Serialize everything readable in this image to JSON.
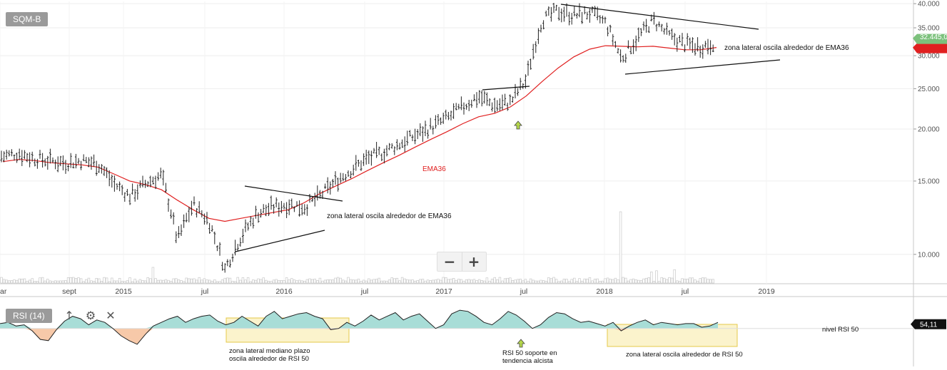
{
  "symbol": "SQM-B",
  "rsi_label": "RSI (14)",
  "icons": {
    "up": "arrow-up-icon",
    "settings": "gear-icon",
    "close": "close-icon",
    "zoom_out": "minus-icon",
    "zoom_in": "plus-icon"
  },
  "zoom": {
    "out_label": "−",
    "in_label": "+"
  },
  "colors": {
    "ema": "#e02020",
    "rsi_above": "#a8ddd7",
    "rsi_below": "#f7c9a9",
    "highlight": "#f6e58d",
    "price_badge": "#7cc17c"
  },
  "chart_data": [
    {
      "type": "line",
      "scale": "log",
      "price_axis": {
        "ticks": [
          10,
          15,
          20,
          25,
          30,
          35,
          40
        ],
        "tick_labels": [
          "10.000",
          "15.000",
          "20.000",
          "25.000",
          "30.000",
          "35.000",
          "40.000"
        ],
        "range": [
          8.5,
          40.5
        ]
      },
      "time_axis": {
        "labels": [
          "ar",
          "sept",
          "2015",
          "jul",
          "2016",
          "jul",
          "2017",
          "jul",
          "2018",
          "jul",
          "2019"
        ]
      },
      "series": [
        {
          "name": "EMA36",
          "values": [
            16.7,
            16.9,
            16.8,
            16.6,
            16.5,
            16.4,
            16.2,
            15.6,
            15.0,
            14.7,
            14.3,
            13.5,
            12.8,
            12.2,
            12.0,
            12.2,
            12.4,
            12.6,
            12.8,
            13.3,
            14.0,
            14.6,
            15.2,
            15.9,
            16.6,
            17.3,
            18.1,
            18.9,
            19.7,
            20.6,
            21.4,
            21.8,
            22.6,
            24.0,
            26.0,
            28.0,
            29.8,
            31.1,
            31.7,
            31.6,
            31.5,
            31.6,
            31.3,
            31.0,
            31.0,
            31.4
          ]
        },
        {
          "name": "",
          "values": [
            17.2,
            17.5,
            17.0,
            16.8,
            16.6,
            16.8,
            16.5,
            14.8,
            13.8,
            14.8,
            15.5,
            10.8,
            13.2,
            12.0,
            9.2,
            11.0,
            12.5,
            13.0,
            13.2,
            13.0,
            13.8,
            15.0,
            16.0,
            17.0,
            17.6,
            18.4,
            19.3,
            20.2,
            21.2,
            22.6,
            24.0,
            22.8,
            23.2,
            26.2,
            36.5,
            38.5,
            37.5,
            38.0,
            36.0,
            29.5,
            33.0,
            36.5,
            33.5,
            32.0,
            31.5,
            32.4
          ]
        }
      ],
      "last_price_label": "32.445,0",
      "volume_spike_index": 39,
      "annotations": [
        {
          "text": "EMA36"
        },
        {
          "text": "zona lateral oscila alrededor de EMA36"
        },
        {
          "text": "zona lateral oscila alrededor de EMA36"
        }
      ]
    },
    {
      "type": "area",
      "title": "RSI (14)",
      "reference_level": 50,
      "values": [
        54,
        55,
        52,
        53,
        48,
        41,
        40,
        49,
        56,
        60,
        58,
        53,
        57,
        55,
        50,
        44,
        40,
        37,
        45,
        52,
        55,
        58,
        60,
        55,
        58,
        60,
        61,
        56,
        53,
        55,
        60,
        56,
        52,
        60,
        64,
        58,
        60,
        62,
        63,
        60,
        58,
        49,
        50,
        55,
        52,
        56,
        61,
        57,
        60,
        63,
        57,
        60,
        62,
        56,
        50,
        53,
        62,
        65,
        64,
        60,
        55,
        53,
        58,
        64,
        61,
        56,
        50,
        53,
        59,
        63,
        62,
        58,
        55,
        56,
        54,
        52,
        55,
        48,
        52,
        55,
        57,
        53,
        55,
        54,
        53,
        54,
        54,
        51,
        52,
        55
      ],
      "current_value_label": "54,11",
      "level_label": "nivel RSI 50",
      "annotations": [
        {
          "text": "zona lateral mediano plazo",
          "text2": "oscila alrededor de RSI 50"
        },
        {
          "text": "RSI 50 soporte en",
          "text2": "tendencia alcista"
        },
        {
          "text": "zona lateral oscila alrededor de RSI 50"
        }
      ]
    }
  ]
}
